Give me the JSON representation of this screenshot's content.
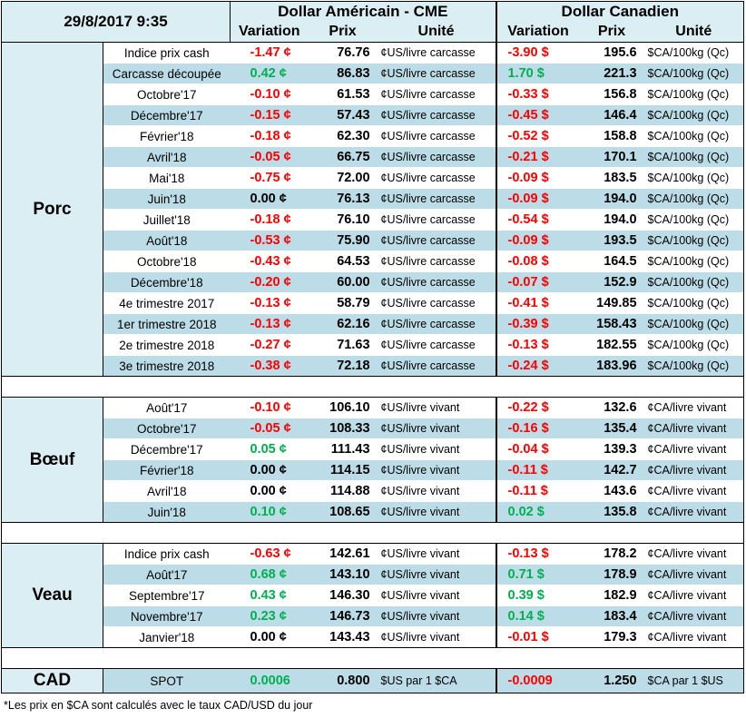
{
  "header": {
    "date": "29/8/2017 9:35",
    "usd_title": "Dollar Américain - CME",
    "cad_title": "Dollar Canadien",
    "col_variation": "Variation",
    "col_prix": "Prix",
    "col_unite": "Unité"
  },
  "sections": [
    {
      "name": "Porc",
      "rows": [
        {
          "label": "Indice prix cash",
          "usd_var": "-1.47 ¢",
          "usd_var_c": "red",
          "usd_prix": "76.76",
          "usd_unit": "¢US/livre carcasse",
          "cad_var": "-3.90 $",
          "cad_var_c": "red",
          "cad_prix": "195.6",
          "cad_unit": "$CA/100kg (Qc)"
        },
        {
          "label": "Carcasse découpée",
          "usd_var": "0.42 ¢",
          "usd_var_c": "green",
          "usd_prix": "86.83",
          "usd_unit": "¢US/livre carcasse",
          "cad_var": "1.70 $",
          "cad_var_c": "green",
          "cad_prix": "221.3",
          "cad_unit": "$CA/100kg (Qc)"
        },
        {
          "label": "Octobre'17",
          "usd_var": "-0.10 ¢",
          "usd_var_c": "red",
          "usd_prix": "61.53",
          "usd_unit": "¢US/livre carcasse",
          "cad_var": "-0.33 $",
          "cad_var_c": "red",
          "cad_prix": "156.8",
          "cad_unit": "$CA/100kg (Qc)"
        },
        {
          "label": "Décembre'17",
          "usd_var": "-0.15 ¢",
          "usd_var_c": "red",
          "usd_prix": "57.43",
          "usd_unit": "¢US/livre carcasse",
          "cad_var": "-0.45 $",
          "cad_var_c": "red",
          "cad_prix": "146.4",
          "cad_unit": "$CA/100kg (Qc)"
        },
        {
          "label": "Février'18",
          "usd_var": "-0.18 ¢",
          "usd_var_c": "red",
          "usd_prix": "62.30",
          "usd_unit": "¢US/livre carcasse",
          "cad_var": "-0.52 $",
          "cad_var_c": "red",
          "cad_prix": "158.8",
          "cad_unit": "$CA/100kg (Qc)"
        },
        {
          "label": "Avril'18",
          "usd_var": "-0.05 ¢",
          "usd_var_c": "red",
          "usd_prix": "66.75",
          "usd_unit": "¢US/livre carcasse",
          "cad_var": "-0.21 $",
          "cad_var_c": "red",
          "cad_prix": "170.1",
          "cad_unit": "$CA/100kg (Qc)"
        },
        {
          "label": "Mai'18",
          "usd_var": "-0.75 ¢",
          "usd_var_c": "red",
          "usd_prix": "72.00",
          "usd_unit": "¢US/livre carcasse",
          "cad_var": "-0.09 $",
          "cad_var_c": "red",
          "cad_prix": "183.5",
          "cad_unit": "$CA/100kg (Qc)"
        },
        {
          "label": "Juin'18",
          "usd_var": "0.00 ¢",
          "usd_var_c": "black",
          "usd_prix": "76.13",
          "usd_unit": "¢US/livre carcasse",
          "cad_var": "-0.09 $",
          "cad_var_c": "red",
          "cad_prix": "194.0",
          "cad_unit": "$CA/100kg (Qc)"
        },
        {
          "label": "Juillet'18",
          "usd_var": "-0.18 ¢",
          "usd_var_c": "red",
          "usd_prix": "76.10",
          "usd_unit": "¢US/livre carcasse",
          "cad_var": "-0.54 $",
          "cad_var_c": "red",
          "cad_prix": "194.0",
          "cad_unit": "$CA/100kg (Qc)"
        },
        {
          "label": "Août'18",
          "usd_var": "-0.53 ¢",
          "usd_var_c": "red",
          "usd_prix": "75.90",
          "usd_unit": "¢US/livre carcasse",
          "cad_var": "-0.09 $",
          "cad_var_c": "red",
          "cad_prix": "193.5",
          "cad_unit": "$CA/100kg (Qc)"
        },
        {
          "label": "Octobre'18",
          "usd_var": "-0.43 ¢",
          "usd_var_c": "red",
          "usd_prix": "64.53",
          "usd_unit": "¢US/livre carcasse",
          "cad_var": "-0.08 $",
          "cad_var_c": "red",
          "cad_prix": "164.5",
          "cad_unit": "$CA/100kg (Qc)"
        },
        {
          "label": "Décembre'18",
          "usd_var": "-0.20 ¢",
          "usd_var_c": "red",
          "usd_prix": "60.00",
          "usd_unit": "¢US/livre carcasse",
          "cad_var": "-0.07 $",
          "cad_var_c": "red",
          "cad_prix": "152.9",
          "cad_unit": "$CA/100kg (Qc)"
        },
        {
          "label": "4e trimestre 2017",
          "usd_var": "-0.13 ¢",
          "usd_var_c": "red",
          "usd_prix": "58.79",
          "usd_unit": "¢US/livre carcasse",
          "cad_var": "-0.41 $",
          "cad_var_c": "red",
          "cad_prix": "149.85",
          "cad_unit": "$CA/100kg (Qc)"
        },
        {
          "label": "1er trimestre 2018",
          "usd_var": "-0.13 ¢",
          "usd_var_c": "red",
          "usd_prix": "62.16",
          "usd_unit": "¢US/livre carcasse",
          "cad_var": "-0.39 $",
          "cad_var_c": "red",
          "cad_prix": "158.43",
          "cad_unit": "$CA/100kg (Qc)"
        },
        {
          "label": "2e trimestre 2018",
          "usd_var": "-0.27 ¢",
          "usd_var_c": "red",
          "usd_prix": "71.63",
          "usd_unit": "¢US/livre carcasse",
          "cad_var": "-0.13 $",
          "cad_var_c": "red",
          "cad_prix": "182.55",
          "cad_unit": "$CA/100kg (Qc)"
        },
        {
          "label": "3e trimestre 2018",
          "usd_var": "-0.38 ¢",
          "usd_var_c": "red",
          "usd_prix": "72.18",
          "usd_unit": "¢US/livre carcasse",
          "cad_var": "-0.24 $",
          "cad_var_c": "red",
          "cad_prix": "183.96",
          "cad_unit": "$CA/100kg (Qc)"
        }
      ]
    },
    {
      "name": "Bœuf",
      "rows": [
        {
          "label": "Août'17",
          "usd_var": "-0.10 ¢",
          "usd_var_c": "red",
          "usd_prix": "106.10",
          "usd_unit": "¢US/livre vivant",
          "cad_var": "-0.22 $",
          "cad_var_c": "red",
          "cad_prix": "132.6",
          "cad_unit": "¢CA/livre vivant"
        },
        {
          "label": "Octobre'17",
          "usd_var": "-0.05 ¢",
          "usd_var_c": "red",
          "usd_prix": "108.33",
          "usd_unit": "¢US/livre vivant",
          "cad_var": "-0.16 $",
          "cad_var_c": "red",
          "cad_prix": "135.4",
          "cad_unit": "¢CA/livre vivant"
        },
        {
          "label": "Décembre'17",
          "usd_var": "0.05 ¢",
          "usd_var_c": "green",
          "usd_prix": "111.43",
          "usd_unit": "¢US/livre vivant",
          "cad_var": "-0.04 $",
          "cad_var_c": "red",
          "cad_prix": "139.3",
          "cad_unit": "¢CA/livre vivant"
        },
        {
          "label": "Février'18",
          "usd_var": "0.00 ¢",
          "usd_var_c": "black",
          "usd_prix": "114.15",
          "usd_unit": "¢US/livre vivant",
          "cad_var": "-0.11 $",
          "cad_var_c": "red",
          "cad_prix": "142.7",
          "cad_unit": "¢CA/livre vivant"
        },
        {
          "label": "Avril'18",
          "usd_var": "0.00 ¢",
          "usd_var_c": "black",
          "usd_prix": "114.88",
          "usd_unit": "¢US/livre vivant",
          "cad_var": "-0.11 $",
          "cad_var_c": "red",
          "cad_prix": "143.6",
          "cad_unit": "¢CA/livre vivant"
        },
        {
          "label": "Juin'18",
          "usd_var": "0.10 ¢",
          "usd_var_c": "green",
          "usd_prix": "108.65",
          "usd_unit": "¢US/livre vivant",
          "cad_var": "0.02 $",
          "cad_var_c": "green",
          "cad_prix": "135.8",
          "cad_unit": "¢CA/livre vivant"
        }
      ]
    },
    {
      "name": "Veau",
      "rows": [
        {
          "label": "Indice prix cash",
          "usd_var": "-0.63 ¢",
          "usd_var_c": "red",
          "usd_prix": "142.61",
          "usd_unit": "¢US/livre vivant",
          "cad_var": "-0.13 $",
          "cad_var_c": "red",
          "cad_prix": "178.2",
          "cad_unit": "¢CA/livre vivant"
        },
        {
          "label": "Août'17",
          "usd_var": "0.68 ¢",
          "usd_var_c": "green",
          "usd_prix": "143.10",
          "usd_unit": "¢US/livre vivant",
          "cad_var": "0.71 $",
          "cad_var_c": "green",
          "cad_prix": "178.9",
          "cad_unit": "¢CA/livre vivant"
        },
        {
          "label": "Septembre'17",
          "usd_var": "0.43 ¢",
          "usd_var_c": "green",
          "usd_prix": "146.30",
          "usd_unit": "¢US/livre vivant",
          "cad_var": "0.39 $",
          "cad_var_c": "green",
          "cad_prix": "182.9",
          "cad_unit": "¢CA/livre vivant"
        },
        {
          "label": "Novembre'17",
          "usd_var": "0.23 ¢",
          "usd_var_c": "green",
          "usd_prix": "146.73",
          "usd_unit": "¢US/livre vivant",
          "cad_var": "0.14 $",
          "cad_var_c": "green",
          "cad_prix": "183.4",
          "cad_unit": "¢CA/livre vivant"
        },
        {
          "label": "Janvier'18",
          "usd_var": "0.00 ¢",
          "usd_var_c": "black",
          "usd_prix": "143.43",
          "usd_unit": "¢US/livre vivant",
          "cad_var": "-0.01 $",
          "cad_var_c": "red",
          "cad_prix": "179.3",
          "cad_unit": "¢CA/livre vivant"
        }
      ]
    }
  ],
  "cad": {
    "name": "CAD",
    "label": "SPOT",
    "usd_var": "0.0006",
    "usd_var_c": "green",
    "usd_prix": "0.800",
    "usd_unit": "$US par 1 $CA",
    "cad_var": "-0.0009",
    "cad_var_c": "red",
    "cad_prix": "1.250",
    "cad_unit": "$CA par 1 $US"
  },
  "footnote": "*Les  prix en $CA sont calculés avec le taux CAD/USD du jour",
  "colors": {
    "red": "#ff0000",
    "green": "#00b050",
    "light_blue": "#dbeef4",
    "mid_blue": "#bcdde8"
  }
}
